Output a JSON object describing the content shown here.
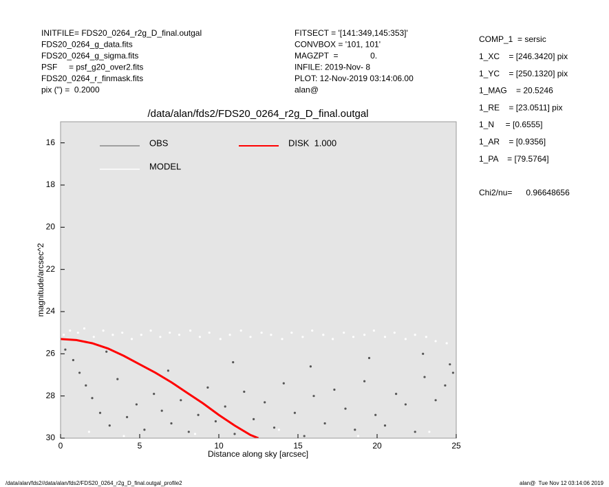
{
  "chart_data": {
    "type": "scatter",
    "title": "/data/alan/fds2/FDS20_0264_r2g_D_final.outgal",
    "xlabel": "Distance along sky [arcsec]",
    "ylabel": "magnitude/arcsec^2",
    "header_left": [
      "INITFILE= FDS20_0264_r2g_D_final.outgal",
      "FDS20_0264_g_data.fits",
      "FDS20_0264_g_sigma.fits",
      "PSF     = psf_g20_over2.fits",
      "FDS20_0264_r_finmask.fits",
      "pix (\") =  0.2000"
    ],
    "header_middle": [
      "FITSECT = '[141:349,145:353]'",
      "CONVBOX = '101, 101'",
      "MAGZPT  =              0.",
      "INFILE: 2019-Nov- 8",
      "PLOT: 12-Nov-2019 03:14:06.00",
      "alan@"
    ],
    "header_right": [
      "COMP_1  = sersic",
      "1_XC    = [246.3420] pix",
      "1_YC    = [250.1320] pix",
      "1_MAG    = 20.5246",
      "1_RE    = [23.0511] pix",
      "1_N     = [0.6555]",
      "1_AR    = [0.9356]",
      "1_PA    = [79.5764]"
    ],
    "fit_stat": "Chi2/nu=      0.96648656",
    "footer_left": "/data/alan/fds2//data/alan/fds2/FDS20_0264_r2g_D_final.outgal_profile2",
    "footer_right": "alan@  Tue Nov 12 03:14:06 2019",
    "xlim": [
      0,
      25
    ],
    "ylim": [
      30,
      15
    ],
    "xticks": [
      0,
      5,
      10,
      15,
      20,
      25
    ],
    "yticks": [
      16,
      18,
      20,
      22,
      24,
      26,
      28,
      30
    ],
    "series": [
      {
        "name": "OBS",
        "color": "#555555",
        "legend_color": "#888888",
        "x": [
          0.3,
          0.8,
          1.2,
          1.6,
          2.0,
          2.5,
          3.1,
          3.6,
          4.2,
          4.8,
          5.3,
          5.9,
          6.4,
          7.0,
          7.6,
          8.1,
          8.7,
          9.3,
          9.8,
          10.4,
          11.0,
          11.6,
          12.2,
          12.9,
          13.5,
          14.1,
          14.8,
          15.4,
          16.0,
          16.7,
          17.3,
          18.0,
          18.6,
          19.2,
          19.9,
          20.5,
          21.2,
          21.8,
          22.4,
          23.0,
          23.7,
          24.3,
          24.8,
          2.9,
          6.8,
          10.9,
          15.8,
          19.5,
          22.9,
          24.6
        ],
        "values": [
          25.8,
          26.3,
          26.9,
          27.5,
          28.1,
          28.8,
          29.4,
          27.2,
          29.0,
          28.4,
          29.6,
          27.9,
          28.7,
          29.3,
          28.2,
          29.7,
          28.9,
          27.6,
          29.2,
          28.5,
          29.8,
          27.8,
          29.1,
          28.3,
          29.5,
          27.4,
          28.8,
          29.9,
          28.0,
          29.3,
          27.7,
          28.6,
          29.6,
          27.3,
          28.9,
          29.4,
          27.9,
          28.4,
          29.7,
          27.1,
          28.2,
          27.5,
          26.9,
          25.9,
          26.8,
          26.4,
          26.6,
          26.2,
          26.0,
          26.5
        ]
      },
      {
        "name": "MODEL",
        "color": "#ffffff",
        "legend_color": "#ffffff",
        "x": [
          0.2,
          0.6,
          1.1,
          1.5,
          2.1,
          2.7,
          3.3,
          3.9,
          4.5,
          5.1,
          5.7,
          6.3,
          6.9,
          7.5,
          8.2,
          8.8,
          9.4,
          10.1,
          10.7,
          11.4,
          12.0,
          12.7,
          13.3,
          14.0,
          14.6,
          15.3,
          15.9,
          16.6,
          17.2,
          17.9,
          18.5,
          19.2,
          19.8,
          20.5,
          21.1,
          21.8,
          22.4,
          23.1,
          23.7,
          24.4,
          1.8,
          4.0,
          8.5,
          13.8,
          18.8,
          23.3
        ],
        "values": [
          25.1,
          24.9,
          25.0,
          24.8,
          25.2,
          24.9,
          25.1,
          25.0,
          25.3,
          25.1,
          24.9,
          25.2,
          25.0,
          25.1,
          24.9,
          25.2,
          25.0,
          25.3,
          25.1,
          24.9,
          25.2,
          25.0,
          25.1,
          25.3,
          25.0,
          25.2,
          24.9,
          25.1,
          25.3,
          25.0,
          25.2,
          25.1,
          24.9,
          25.2,
          25.0,
          25.3,
          25.1,
          25.2,
          25.4,
          25.5,
          29.7,
          29.9,
          29.8,
          29.6,
          29.9,
          29.7
        ]
      },
      {
        "name": "DISK  1.000",
        "color": "#ff0000",
        "legend_color": "#ff0000",
        "line": true,
        "x": [
          0,
          1,
          2,
          3,
          4,
          5,
          6,
          7,
          8,
          9,
          10,
          11,
          12,
          12.5
        ],
        "values": [
          25.3,
          25.35,
          25.5,
          25.75,
          26.1,
          26.5,
          26.9,
          27.35,
          27.85,
          28.35,
          28.9,
          29.4,
          29.85,
          30.0
        ]
      }
    ]
  }
}
